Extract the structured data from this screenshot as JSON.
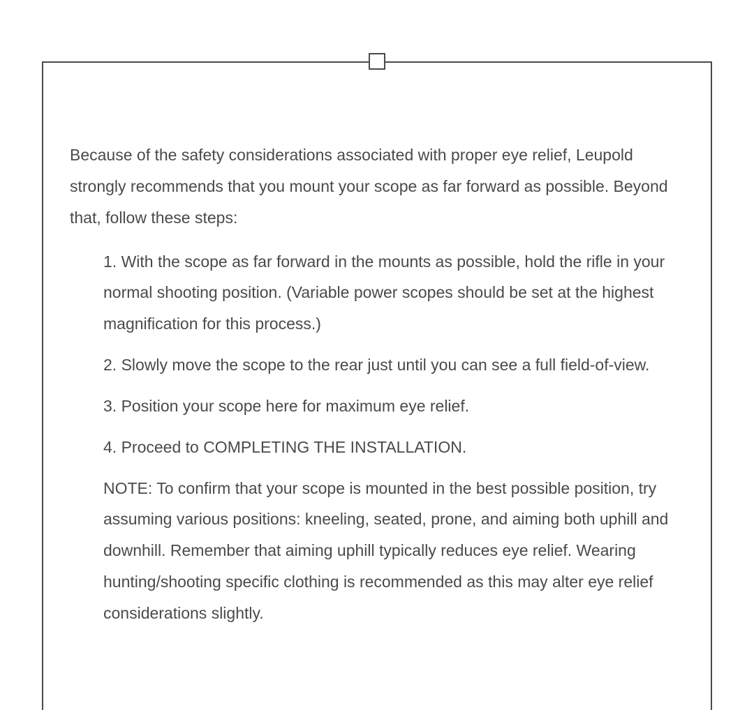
{
  "intro": "Because of the safety considerations associated with proper eye relief, Leupold strongly recommends that you mount your scope as far forward as possible. Beyond that, follow these steps:",
  "steps": [
    "1. With the scope as far forward in the mounts as possible, hold the rifle in your normal shooting position. (Variable power scopes should be set at the highest magnification for this process.)",
    "2. Slowly move the scope to the rear just until you can see a full field-of-view.",
    "3. Position your scope here for maximum eye relief.",
    "4. Proceed to COMPLETING THE INSTALLATION."
  ],
  "note": "NOTE: To confirm that your scope is mounted in the best possible position, try assuming various positions: kneeling, seated, prone, and aiming both uphill and downhill. Remember that aiming uphill typically reduces eye relief. Wearing hunting/shooting specific clothing is recommended as this may alter eye relief considerations slightly."
}
